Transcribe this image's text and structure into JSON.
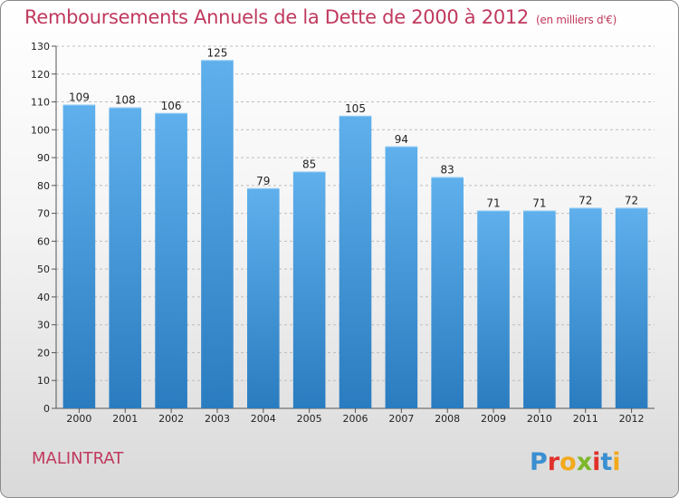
{
  "title": "Remboursements Annuels de la Dette de 2000 à 2012",
  "unit_label": "(en milliers d'€)",
  "commune": "MALINTRAT",
  "logo": {
    "text": "Proxiti",
    "letter_colors": [
      "#3a8fd1",
      "#e0312a",
      "#f2a91b",
      "#7cb829",
      "#e0312a",
      "#3a8fd1",
      "#f2a91b"
    ]
  },
  "colors": {
    "bar_light": "#5fb0ec",
    "bar_dark": "#2a7cc0",
    "title": "#c0395e"
  },
  "chart_data": {
    "type": "bar",
    "title": "Remboursements Annuels de la Dette de 2000 à 2012",
    "categories": [
      "2000",
      "2001",
      "2002",
      "2003",
      "2004",
      "2005",
      "2006",
      "2007",
      "2008",
      "2009",
      "2010",
      "2011",
      "2012"
    ],
    "values": [
      109,
      108,
      106,
      125,
      79,
      85,
      105,
      94,
      83,
      71,
      71,
      72,
      72
    ],
    "ylim": [
      0,
      130
    ],
    "yticks": [
      0,
      10,
      20,
      30,
      40,
      50,
      60,
      70,
      80,
      90,
      100,
      110,
      120,
      130
    ],
    "grid": true,
    "xlabel": "",
    "ylabel": ""
  }
}
